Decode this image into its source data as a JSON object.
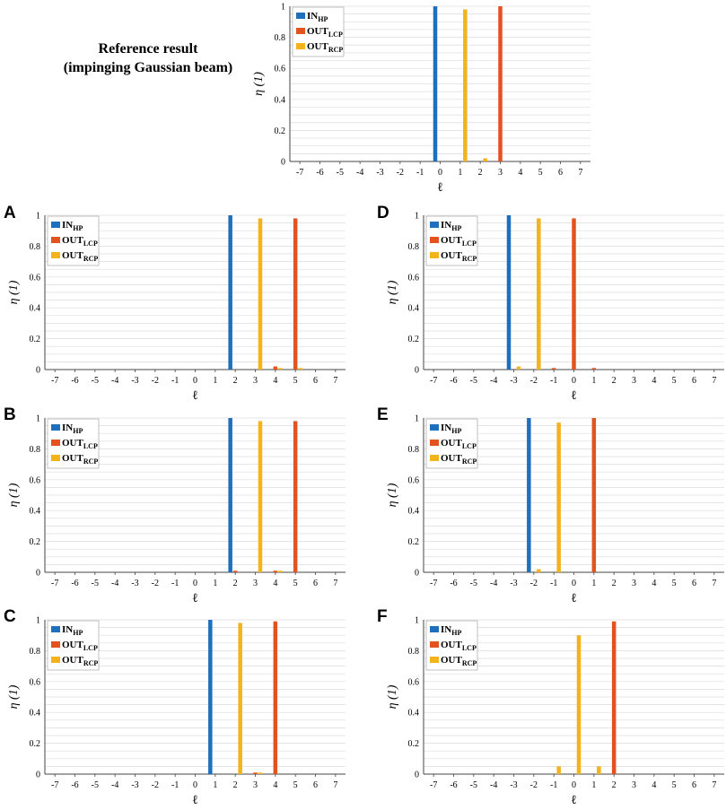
{
  "reference_title": [
    "Reference result",
    "(impinging Gaussian beam)"
  ],
  "colors": {
    "in_hp": "#1f6fbf",
    "out_lcp": "#e2531e",
    "out_rcp": "#f2b31b",
    "grid": "#dcdcdc",
    "axis": "#444444"
  },
  "chart_data": [
    {
      "id": "reference",
      "panel_label": "",
      "type": "bar",
      "xlabel": "ℓ",
      "ylabel": "η (1)",
      "ylim": [
        0,
        1
      ],
      "yticks": [
        "0",
        "0.2",
        "0.4",
        "0.6",
        "0.8",
        "1"
      ],
      "categories": [
        "-7",
        "-6",
        "-5",
        "-4",
        "-3",
        "-2",
        "-1",
        "0",
        "1",
        "2",
        "3",
        "4",
        "5",
        "6",
        "7"
      ],
      "legend": [
        {
          "main": "IN",
          "sub": "HP"
        },
        {
          "main": "OUT",
          "sub": "LCP"
        },
        {
          "main": "OUT",
          "sub": "RCP"
        }
      ],
      "series": [
        {
          "name": "IN_HP",
          "values": [
            0,
            0,
            0,
            0,
            0,
            0,
            0,
            1,
            0,
            0,
            0,
            0,
            0,
            0,
            0
          ]
        },
        {
          "name": "OUT_LCP",
          "values": [
            0,
            0,
            0,
            0,
            0,
            0,
            0,
            0,
            0,
            0,
            1,
            0,
            0,
            0,
            0
          ]
        },
        {
          "name": "OUT_RCP",
          "values": [
            0,
            0,
            0,
            0,
            0,
            0,
            0,
            0,
            0.98,
            0.02,
            0,
            0,
            0,
            0,
            0
          ]
        }
      ]
    },
    {
      "id": "A",
      "panel_label": "A",
      "type": "bar",
      "xlabel": "ℓ",
      "ylabel": "η (1)",
      "ylim": [
        0,
        1
      ],
      "yticks": [
        "0",
        "0.2",
        "0.4",
        "0.6",
        "0.8",
        "1"
      ],
      "categories": [
        "-7",
        "-6",
        "-5",
        "-4",
        "-3",
        "-2",
        "-1",
        "0",
        "1",
        "2",
        "3",
        "4",
        "5",
        "6",
        "7"
      ],
      "legend": [
        {
          "main": "IN",
          "sub": "HP"
        },
        {
          "main": "OUT",
          "sub": "LCP"
        },
        {
          "main": "OUT",
          "sub": "RCP"
        }
      ],
      "series": [
        {
          "name": "IN_HP",
          "values": [
            0,
            0,
            0,
            0,
            0,
            0,
            0,
            0,
            0,
            1,
            0,
            0,
            0,
            0,
            0
          ]
        },
        {
          "name": "OUT_LCP",
          "values": [
            0,
            0,
            0,
            0,
            0,
            0,
            0,
            0,
            0,
            0,
            0,
            0.02,
            0.98,
            0,
            0
          ]
        },
        {
          "name": "OUT_RCP",
          "values": [
            0,
            0,
            0,
            0,
            0,
            0,
            0,
            0,
            0,
            0,
            0.98,
            0.01,
            0.01,
            0,
            0
          ]
        }
      ]
    },
    {
      "id": "D",
      "panel_label": "D",
      "type": "bar",
      "xlabel": "ℓ",
      "ylabel": "η (1)",
      "ylim": [
        0,
        1
      ],
      "yticks": [
        "0",
        "0.2",
        "0.4",
        "0.6",
        "0.8",
        "1"
      ],
      "categories": [
        "-7",
        "-6",
        "-5",
        "-4",
        "-3",
        "-2",
        "-1",
        "0",
        "1",
        "2",
        "3",
        "4",
        "5",
        "6",
        "7"
      ],
      "legend": [
        {
          "main": "IN",
          "sub": "HP"
        },
        {
          "main": "OUT",
          "sub": "LCP"
        },
        {
          "main": "OUT",
          "sub": "RCP"
        }
      ],
      "series": [
        {
          "name": "IN_HP",
          "values": [
            0,
            0,
            0,
            0,
            1,
            0,
            0,
            0,
            0,
            0,
            0,
            0,
            0,
            0,
            0
          ]
        },
        {
          "name": "OUT_LCP",
          "values": [
            0,
            0,
            0,
            0,
            0,
            0,
            0.01,
            0.98,
            0.01,
            0,
            0,
            0,
            0,
            0,
            0
          ]
        },
        {
          "name": "OUT_RCP",
          "values": [
            0,
            0,
            0,
            0,
            0.02,
            0.98,
            0,
            0,
            0,
            0,
            0,
            0,
            0,
            0,
            0
          ]
        }
      ]
    },
    {
      "id": "B",
      "panel_label": "B",
      "type": "bar",
      "xlabel": "ℓ",
      "ylabel": "η (1)",
      "ylim": [
        0,
        1
      ],
      "yticks": [
        "0",
        "0.2",
        "0.4",
        "0.6",
        "0.8",
        "1"
      ],
      "categories": [
        "-7",
        "-6",
        "-5",
        "-4",
        "-3",
        "-2",
        "-1",
        "0",
        "1",
        "2",
        "3",
        "4",
        "5",
        "6",
        "7"
      ],
      "legend": [
        {
          "main": "IN",
          "sub": "HP"
        },
        {
          "main": "OUT",
          "sub": "LCP"
        },
        {
          "main": "OUT",
          "sub": "RCP"
        }
      ],
      "series": [
        {
          "name": "IN_HP",
          "values": [
            0,
            0,
            0,
            0,
            0,
            0,
            0,
            0,
            0,
            1,
            0,
            0,
            0,
            0,
            0
          ]
        },
        {
          "name": "OUT_LCP",
          "values": [
            0,
            0,
            0,
            0,
            0,
            0,
            0,
            0,
            0,
            0.01,
            0,
            0.01,
            0.98,
            0,
            0
          ]
        },
        {
          "name": "OUT_RCP",
          "values": [
            0,
            0,
            0,
            0,
            0,
            0,
            0,
            0,
            0,
            0,
            0.98,
            0.01,
            0,
            0,
            0
          ]
        }
      ]
    },
    {
      "id": "E",
      "panel_label": "E",
      "type": "bar",
      "xlabel": "ℓ",
      "ylabel": "η (1)",
      "ylim": [
        0,
        1
      ],
      "yticks": [
        "0",
        "0.2",
        "0.4",
        "0.6",
        "0.8",
        "1"
      ],
      "categories": [
        "-7",
        "-6",
        "-5",
        "-4",
        "-3",
        "-2",
        "-1",
        "0",
        "1",
        "2",
        "3",
        "4",
        "5",
        "6",
        "7"
      ],
      "legend": [
        {
          "main": "IN",
          "sub": "HP"
        },
        {
          "main": "OUT",
          "sub": "LCP"
        },
        {
          "main": "OUT",
          "sub": "RCP"
        }
      ],
      "series": [
        {
          "name": "IN_HP",
          "values": [
            0,
            0,
            0,
            0,
            0,
            1,
            0,
            0,
            0,
            0,
            0,
            0,
            0,
            0,
            0
          ]
        },
        {
          "name": "OUT_LCP",
          "values": [
            0,
            0,
            0,
            0,
            0,
            0,
            0,
            0,
            1,
            0,
            0,
            0,
            0,
            0,
            0
          ]
        },
        {
          "name": "OUT_RCP",
          "values": [
            0,
            0,
            0,
            0,
            0,
            0.02,
            0.97,
            0,
            0,
            0,
            0,
            0,
            0,
            0,
            0
          ]
        }
      ]
    },
    {
      "id": "C",
      "panel_label": "C",
      "type": "bar",
      "xlabel": "ℓ",
      "ylabel": "η (1)",
      "ylim": [
        0,
        1
      ],
      "yticks": [
        "0",
        "0.2",
        "0.4",
        "0.6",
        "0.8",
        "1"
      ],
      "categories": [
        "-7",
        "-6",
        "-5",
        "-4",
        "-3",
        "-2",
        "-1",
        "0",
        "1",
        "2",
        "3",
        "4",
        "5",
        "6",
        "7"
      ],
      "legend": [
        {
          "main": "IN",
          "sub": "HP"
        },
        {
          "main": "OUT",
          "sub": "LCP"
        },
        {
          "main": "OUT",
          "sub": "RCP"
        }
      ],
      "series": [
        {
          "name": "IN_HP",
          "values": [
            0,
            0,
            0,
            0,
            0,
            0,
            0,
            0,
            1,
            0,
            0,
            0,
            0,
            0,
            0
          ]
        },
        {
          "name": "OUT_LCP",
          "values": [
            0,
            0,
            0,
            0,
            0,
            0,
            0,
            0,
            0,
            0,
            0.01,
            0.99,
            0,
            0,
            0
          ]
        },
        {
          "name": "OUT_RCP",
          "values": [
            0,
            0,
            0,
            0,
            0,
            0,
            0,
            0,
            0,
            0.98,
            0.01,
            0,
            0,
            0,
            0
          ]
        }
      ]
    },
    {
      "id": "F",
      "panel_label": "F",
      "type": "bar",
      "xlabel": "ℓ",
      "ylabel": "η (1)",
      "ylim": [
        0,
        1
      ],
      "yticks": [
        "0",
        "0.2",
        "0.4",
        "0.6",
        "0.8",
        "1"
      ],
      "categories": [
        "-7",
        "-6",
        "-5",
        "-4",
        "-3",
        "-2",
        "-1",
        "0",
        "1",
        "2",
        "3",
        "4",
        "5",
        "6",
        "7"
      ],
      "legend": [
        {
          "main": "IN",
          "sub": "HP"
        },
        {
          "main": "OUT",
          "sub": "LCP"
        },
        {
          "main": "OUT",
          "sub": "RCP"
        }
      ],
      "series": [
        {
          "name": "IN_HP",
          "values": [
            0,
            0,
            0,
            0,
            0,
            0,
            0,
            0,
            0,
            0,
            0,
            0,
            0,
            0,
            0
          ]
        },
        {
          "name": "OUT_LCP",
          "values": [
            0,
            0,
            0,
            0,
            0,
            0,
            0,
            0,
            0,
            0.99,
            0,
            0,
            0,
            0,
            0
          ]
        },
        {
          "name": "OUT_RCP",
          "values": [
            0,
            0,
            0,
            0,
            0,
            0,
            0.05,
            0.9,
            0.05,
            0,
            0,
            0,
            0,
            0,
            0
          ]
        }
      ]
    }
  ]
}
